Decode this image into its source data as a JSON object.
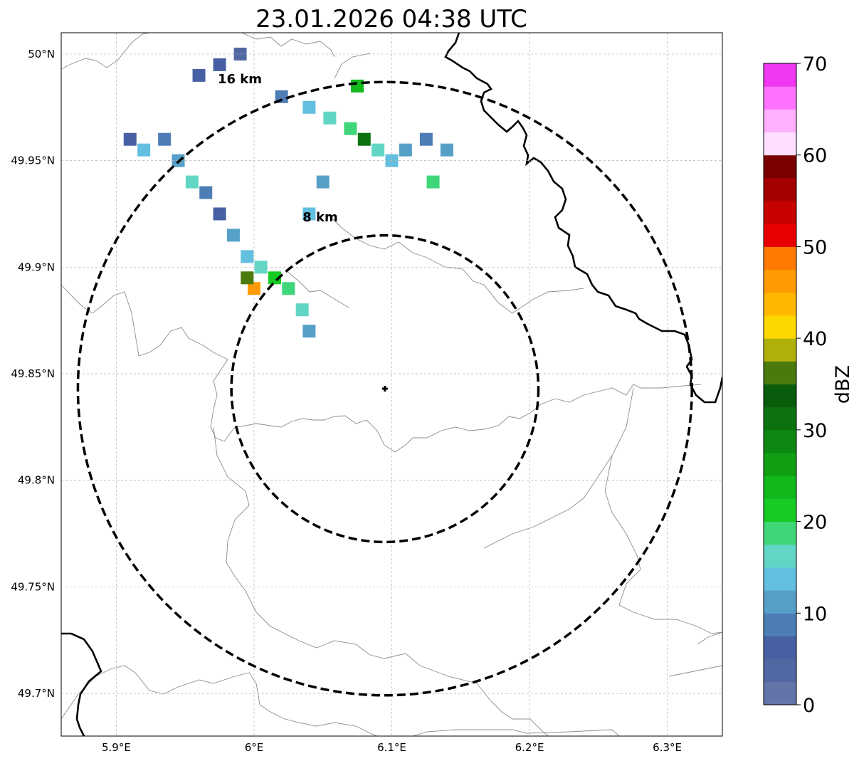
{
  "title": "23.01.2026 04:38 UTC",
  "map": {
    "lon_range": [
      5.86,
      6.34
    ],
    "lat_range": [
      49.68,
      50.01
    ],
    "lon_ticks": [
      {
        "value": 5.9,
        "label": "5.9°E"
      },
      {
        "value": 6.0,
        "label": "6°E"
      },
      {
        "value": 6.1,
        "label": "6.1°E"
      },
      {
        "value": 6.2,
        "label": "6.2°E"
      },
      {
        "value": 6.3,
        "label": "6.3°E"
      }
    ],
    "lat_ticks": [
      {
        "value": 50.0,
        "label": "50°N"
      },
      {
        "value": 49.95,
        "label": "49.95°N"
      },
      {
        "value": 49.9,
        "label": "49.9°N"
      },
      {
        "value": 49.85,
        "label": "49.85°N"
      },
      {
        "value": 49.8,
        "label": "49.8°N"
      },
      {
        "value": 49.75,
        "label": "49.75°N"
      },
      {
        "value": 49.7,
        "label": "49.7°N"
      }
    ],
    "grid": true,
    "radar_site": {
      "lon": 6.095,
      "lat": 49.843
    },
    "range_rings": [
      {
        "radius_km": 8,
        "label": "8 km"
      },
      {
        "radius_km": 16,
        "label": "16 km"
      }
    ],
    "colors": {
      "ring": "#000000",
      "border": "#000000",
      "admin": "#8c8c8c",
      "grid": "#b4b4b4"
    }
  },
  "colorbar": {
    "label": "dBZ",
    "min": 0,
    "max": 70,
    "ticks": [
      "0",
      "10",
      "20",
      "30",
      "40",
      "50",
      "60",
      "70"
    ],
    "colors": [
      "#6375a8",
      "#5268a3",
      "#4760a3",
      "#4e7db5",
      "#56a0c8",
      "#63bfe0",
      "#62d6c4",
      "#3fd67a",
      "#16cc24",
      "#12b81c",
      "#109f12",
      "#0d8812",
      "#0c7210",
      "#095c0b",
      "#4a7a0c",
      "#b0b00a",
      "#ffd700",
      "#ffb700",
      "#ff9a00",
      "#ff7a00",
      "#e80000",
      "#c70000",
      "#a50000",
      "#7b0000",
      "#ffdeff",
      "#ffb0ff",
      "#ff72ff",
      "#ef36f0"
    ]
  },
  "reflectivity_cells": [
    {
      "lon": 5.91,
      "lat": 49.96,
      "dbz": 5
    },
    {
      "lon": 5.92,
      "lat": 49.955,
      "dbz": 14
    },
    {
      "lon": 5.935,
      "lat": 49.96,
      "dbz": 8
    },
    {
      "lon": 5.945,
      "lat": 49.95,
      "dbz": 12
    },
    {
      "lon": 5.955,
      "lat": 49.94,
      "dbz": 16
    },
    {
      "lon": 5.965,
      "lat": 49.935,
      "dbz": 9
    },
    {
      "lon": 5.975,
      "lat": 49.925,
      "dbz": 7
    },
    {
      "lon": 5.985,
      "lat": 49.915,
      "dbz": 11
    },
    {
      "lon": 5.995,
      "lat": 49.905,
      "dbz": 13
    },
    {
      "lon": 6.005,
      "lat": 49.9,
      "dbz": 15
    },
    {
      "lon": 6.015,
      "lat": 49.895,
      "dbz": 22
    },
    {
      "lon": 6.025,
      "lat": 49.89,
      "dbz": 18
    },
    {
      "lon": 6.035,
      "lat": 49.88,
      "dbz": 17
    },
    {
      "lon": 6.04,
      "lat": 49.87,
      "dbz": 12
    },
    {
      "lon": 6.0,
      "lat": 49.89,
      "dbz": 45
    },
    {
      "lon": 5.995,
      "lat": 49.895,
      "dbz": 37
    },
    {
      "lon": 5.96,
      "lat": 49.99,
      "dbz": 6
    },
    {
      "lon": 5.975,
      "lat": 49.995,
      "dbz": 5
    },
    {
      "lon": 5.99,
      "lat": 50.0,
      "dbz": 4
    },
    {
      "lon": 6.02,
      "lat": 49.98,
      "dbz": 9
    },
    {
      "lon": 6.04,
      "lat": 49.975,
      "dbz": 13
    },
    {
      "lon": 6.055,
      "lat": 49.97,
      "dbz": 15
    },
    {
      "lon": 6.07,
      "lat": 49.965,
      "dbz": 18
    },
    {
      "lon": 6.08,
      "lat": 49.96,
      "dbz": 32
    },
    {
      "lon": 6.09,
      "lat": 49.955,
      "dbz": 16
    },
    {
      "lon": 6.1,
      "lat": 49.95,
      "dbz": 14
    },
    {
      "lon": 6.11,
      "lat": 49.955,
      "dbz": 10
    },
    {
      "lon": 6.125,
      "lat": 49.96,
      "dbz": 8
    },
    {
      "lon": 6.14,
      "lat": 49.955,
      "dbz": 11
    },
    {
      "lon": 6.13,
      "lat": 49.94,
      "dbz": 19
    },
    {
      "lon": 6.075,
      "lat": 49.985,
      "dbz": 24
    },
    {
      "lon": 6.05,
      "lat": 49.94,
      "dbz": 12
    },
    {
      "lon": 6.04,
      "lat": 49.925,
      "dbz": 14
    }
  ]
}
